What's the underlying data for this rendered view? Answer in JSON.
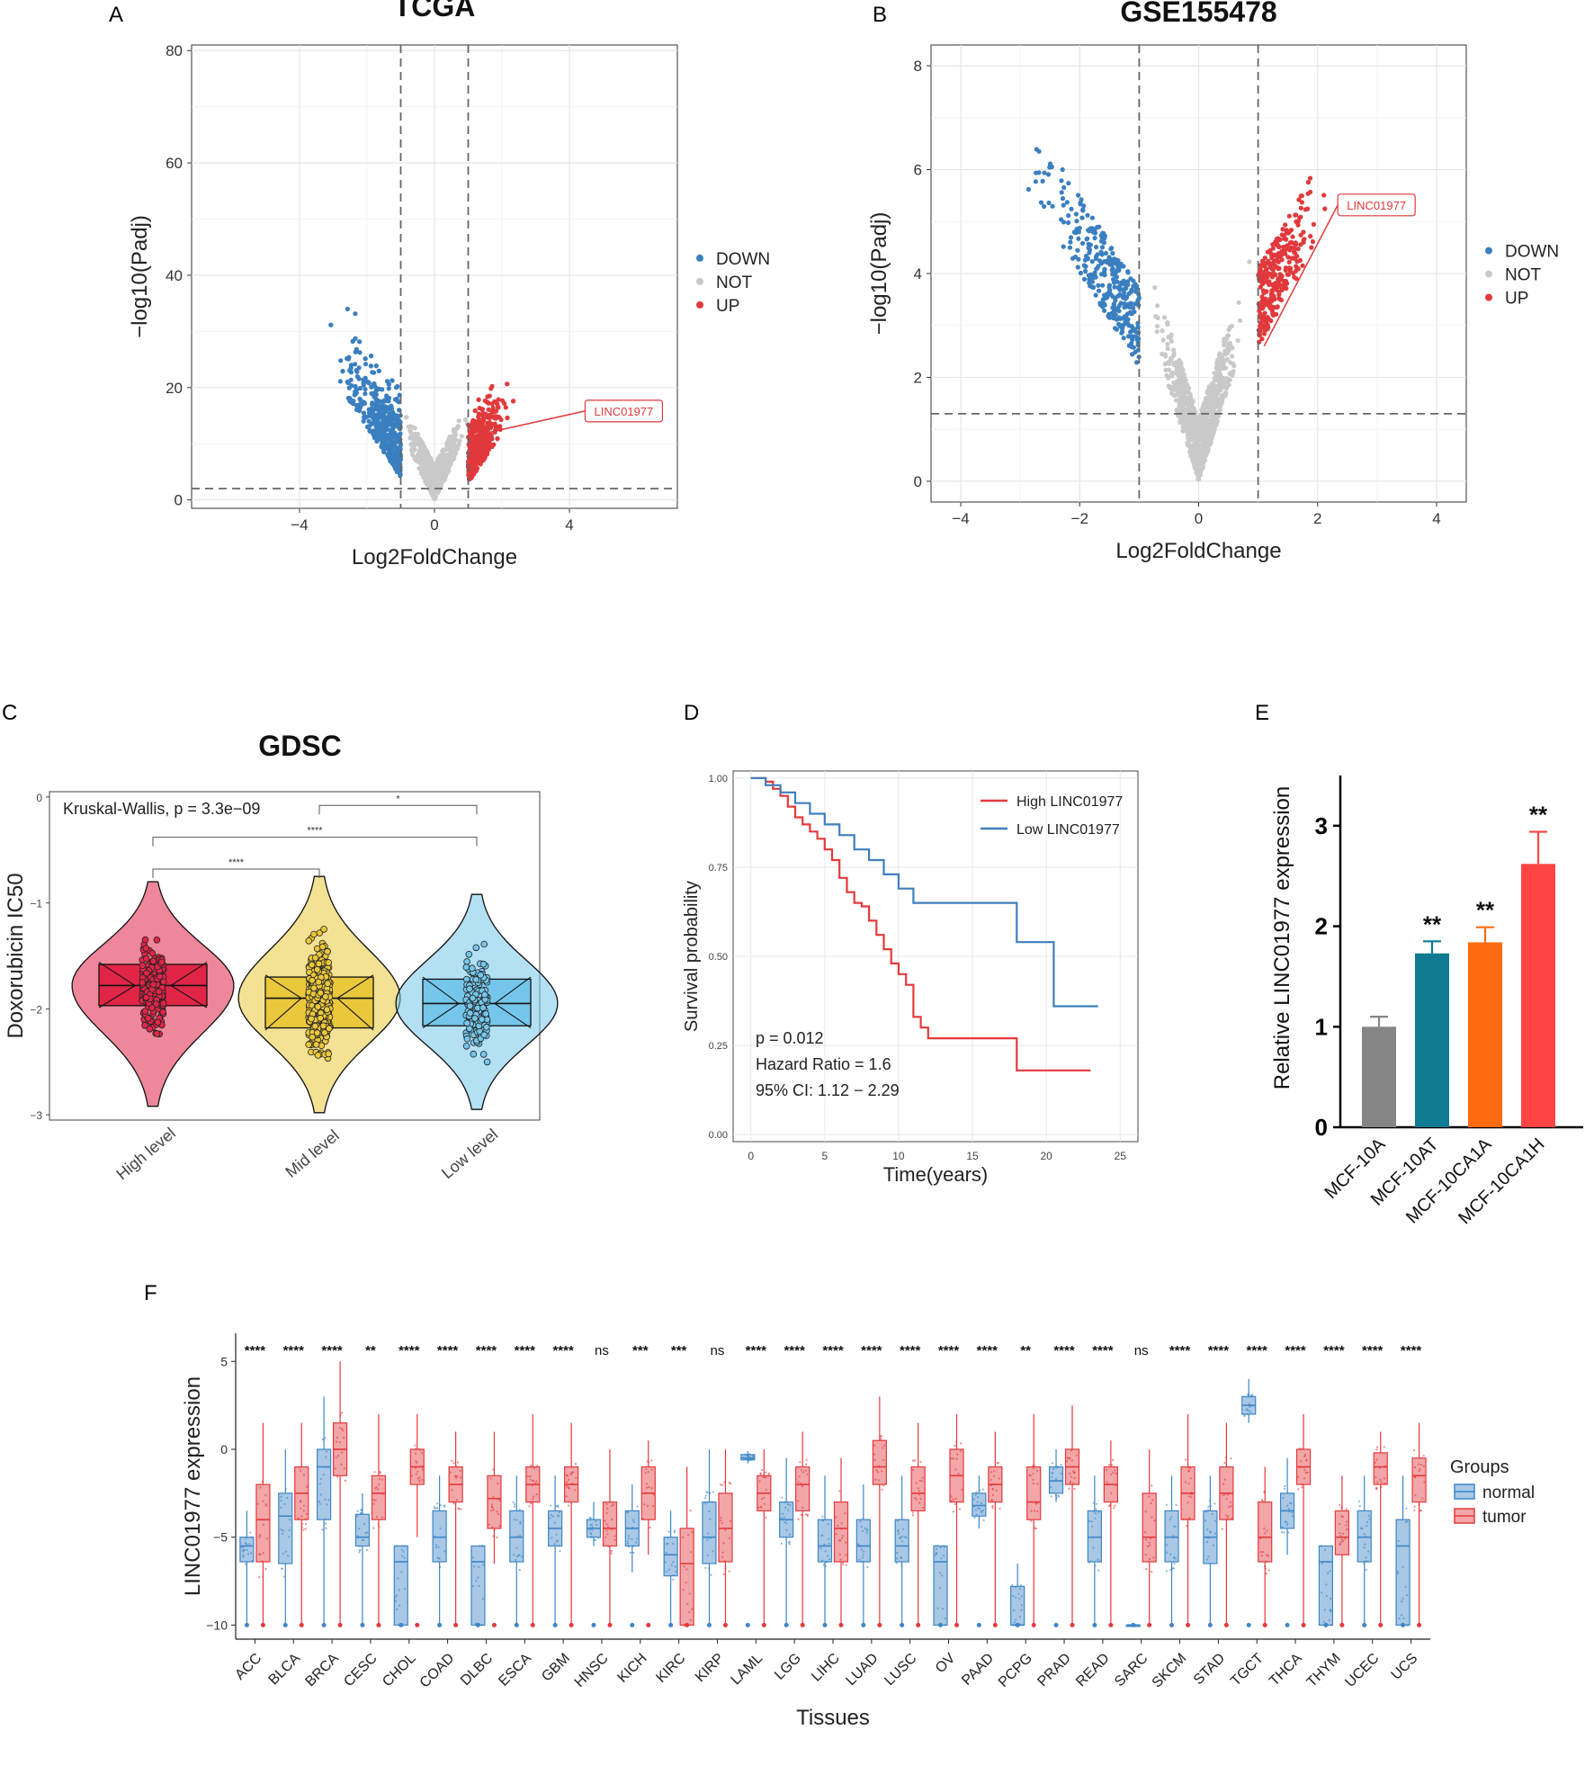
{
  "figure": {
    "panel_letters": [
      "A",
      "B",
      "C",
      "D",
      "E",
      "F"
    ]
  },
  "colors": {
    "down": "#3a7fc0",
    "not": "#c9c9c9",
    "up": "#e1393c",
    "high": "#e02547",
    "mid": "#eac83c",
    "low": "#74c6ea",
    "km_high": "#e5393c",
    "km_low": "#3e7fbd",
    "bar_10a": "#858585",
    "bar_10at": "#0f7b92",
    "bar_ca1a": "#ff6b0f",
    "bar_ca1h": "#ff4444",
    "normal": "#3e86c6",
    "tumor": "#e5393c"
  },
  "chart_data": [
    {
      "panel": "A",
      "type": "scatter",
      "title": "TCGA",
      "xlabel": "Log2FoldChange",
      "ylabel": "−log10(Padj)",
      "xlim": [
        -7.2,
        7.2
      ],
      "ylim": [
        -1.5,
        81
      ],
      "x_ticks": [
        -4,
        0,
        4
      ],
      "y_ticks": [
        0,
        20,
        40,
        60,
        80
      ],
      "fc_threshold": 1,
      "padj_threshold_line": 2,
      "legend": [
        "DOWN",
        "NOT",
        "UP"
      ],
      "annotation": {
        "label": "LINC01977",
        "x": 1.6,
        "y": 12
      }
    },
    {
      "panel": "B",
      "type": "scatter",
      "title": "GSE155478",
      "xlabel": "Log2FoldChange",
      "ylabel": "−log10(Padj)",
      "xlim": [
        -4.5,
        4.5
      ],
      "ylim": [
        -0.4,
        8.4
      ],
      "x_ticks": [
        -4,
        -2,
        0,
        2,
        4
      ],
      "y_ticks": [
        0,
        2,
        4,
        6,
        8
      ],
      "fc_threshold": 1,
      "padj_threshold_line": 1.3,
      "legend": [
        "DOWN",
        "NOT",
        "UP"
      ],
      "annotation": {
        "label": "LINC01977",
        "x": 1.1,
        "y": 2.6
      }
    },
    {
      "panel": "C",
      "type": "box",
      "title": "GDSC",
      "ylabel": "Doxorubicin IC50",
      "ylim": [
        -3.05,
        0.05
      ],
      "y_ticks": [
        0,
        -1,
        -2,
        -3
      ],
      "test_label": "Kruskal-Wallis, p = 3.3e−09",
      "groups": [
        {
          "name": "High level",
          "q1": -1.97,
          "median": -1.78,
          "q3": -1.58,
          "min": -2.45,
          "max": -1.1,
          "violin_min": -2.92,
          "violin_max": -0.8,
          "n": 220
        },
        {
          "name": "Mid level",
          "q1": -2.18,
          "median": -1.9,
          "q3": -1.7,
          "min": -2.85,
          "max": -1.05,
          "violin_min": -2.98,
          "violin_max": -0.75,
          "n": 360
        },
        {
          "name": "Low level",
          "q1": -2.16,
          "median": -1.95,
          "q3": -1.72,
          "min": -2.7,
          "max": -1.15,
          "violin_min": -2.95,
          "violin_max": -0.92,
          "n": 160
        }
      ],
      "comparisons": [
        {
          "from": 1,
          "to": 2,
          "label": "*",
          "y": -0.08
        },
        {
          "from": 0,
          "to": 2,
          "label": "****",
          "y": -0.38
        },
        {
          "from": 0,
          "to": 1,
          "label": "****",
          "y": -0.68
        }
      ]
    },
    {
      "panel": "D",
      "type": "line",
      "xlabel": "Time(years)",
      "ylabel": "Survival probability",
      "xlim": [
        -1.2,
        26.2
      ],
      "ylim": [
        -0.02,
        1.02
      ],
      "x_ticks": [
        0,
        5,
        10,
        15,
        20,
        25
      ],
      "y_ticks": [
        "0.00",
        "0.25",
        "0.50",
        "0.75",
        "1.00"
      ],
      "series": [
        {
          "name": "High LINC01977",
          "x": [
            0,
            1,
            1.5,
            2,
            2.5,
            3,
            3.5,
            4,
            4.5,
            5,
            5.5,
            6,
            6.5,
            7,
            7.5,
            8,
            8.5,
            9,
            9.5,
            10,
            10.5,
            11,
            11.5,
            12,
            18,
            23
          ],
          "y": [
            1,
            0.99,
            0.97,
            0.95,
            0.92,
            0.89,
            0.87,
            0.85,
            0.83,
            0.8,
            0.77,
            0.72,
            0.68,
            0.65,
            0.64,
            0.6,
            0.56,
            0.52,
            0.48,
            0.45,
            0.42,
            0.33,
            0.3,
            0.27,
            0.18,
            0.18
          ]
        },
        {
          "name": "Low LINC01977",
          "x": [
            0,
            1,
            2,
            3,
            4,
            5,
            6,
            7,
            8,
            9,
            10,
            11,
            18,
            20.5,
            23.5
          ],
          "y": [
            1,
            0.98,
            0.96,
            0.93,
            0.9,
            0.87,
            0.84,
            0.8,
            0.77,
            0.73,
            0.69,
            0.65,
            0.54,
            0.36,
            0.36
          ]
        }
      ],
      "annotations": [
        "p = 0.012",
        "Hazard Ratio = 1.6",
        "95% CI: 1.12 − 2.29"
      ]
    },
    {
      "panel": "E",
      "type": "bar",
      "ylabel": "Relative LINC01977 expression",
      "ylim": [
        0,
        3.5
      ],
      "y_ticks": [
        0,
        1,
        2,
        3
      ],
      "categories": [
        "MCF-10A",
        "MCF-10AT",
        "MCF-10CA1A",
        "MCF-10CA1H"
      ],
      "values": [
        1.0,
        1.73,
        1.84,
        2.62
      ],
      "errors": [
        0.1,
        0.12,
        0.15,
        0.32
      ],
      "significance": [
        "",
        "**",
        "**",
        "**"
      ]
    },
    {
      "panel": "F",
      "type": "box",
      "xlabel": "Tissues",
      "ylabel": "LINC01977 expression",
      "ylim": [
        -10.8,
        6.6
      ],
      "y_ticks": [
        5,
        0,
        -5,
        -10
      ],
      "legend_title": "Groups",
      "legend": [
        "normal",
        "tumor"
      ],
      "categories": [
        "ACC",
        "BLCA",
        "BRCA",
        "CESC",
        "CHOL",
        "COAD",
        "DLBC",
        "ESCA",
        "GBM",
        "HNSC",
        "KICH",
        "KIRC",
        "KIRP",
        "LAML",
        "LGG",
        "LIHC",
        "LUAD",
        "LUSC",
        "OV",
        "PAAD",
        "PCPG",
        "PRAD",
        "READ",
        "SARC",
        "SKCM",
        "STAD",
        "TGCT",
        "THCA",
        "THYM",
        "UCEC",
        "UCS"
      ],
      "significance": [
        "****",
        "****",
        "****",
        "**",
        "****",
        "****",
        "****",
        "****",
        "****",
        "ns",
        "***",
        "***",
        "ns",
        "****",
        "****",
        "****",
        "****",
        "****",
        "****",
        "****",
        "**",
        "****",
        "****",
        "ns",
        "****",
        "****",
        "****",
        "****",
        "****",
        "****",
        "****"
      ],
      "normal": [
        [
          -10,
          -6.4,
          -5.5,
          -5,
          -3.5
        ],
        [
          -10,
          -6.5,
          -3.8,
          -2.5,
          0
        ],
        [
          -10,
          -4,
          -1,
          0,
          3
        ],
        [
          -10,
          -5.5,
          -5,
          -3.7,
          -2.5
        ],
        [
          -10,
          -10,
          -6.4,
          -5.5,
          -5.5
        ],
        [
          -10,
          -6.4,
          -5,
          -3.5,
          -1.5
        ],
        [
          -10,
          -10,
          -6.4,
          -5.5,
          -5.5
        ],
        [
          -10,
          -6.4,
          -5,
          -3.5,
          -1.5
        ],
        [
          -10,
          -5.5,
          -4.5,
          -3.5,
          -1.5
        ],
        [
          -5.5,
          -5,
          -4.5,
          -4,
          -3
        ],
        [
          -7,
          -5.5,
          -4.5,
          -3.5,
          -2
        ],
        [
          -10,
          -7.2,
          -6,
          -5,
          -3.5
        ],
        [
          -10,
          -6.5,
          -5,
          -3,
          0
        ],
        [
          -0.8,
          -0.6,
          -0.5,
          -0.3,
          -0.1
        ],
        [
          -10,
          -5,
          -4,
          -3,
          -0.5
        ],
        [
          -10,
          -6.4,
          -5.5,
          -4,
          -1.5
        ],
        [
          -10,
          -6.4,
          -5.5,
          -4,
          -2
        ],
        [
          -10,
          -6.4,
          -5.5,
          -4,
          -1.5
        ],
        [
          -10,
          -10,
          -6.4,
          -5.5,
          -5.5
        ],
        [
          -4.5,
          -3.8,
          -3.2,
          -2.5,
          -1.5
        ],
        [
          -10,
          -10,
          -10,
          -7.8,
          -6.5
        ],
        [
          -3,
          -2.5,
          -1.8,
          -1,
          0
        ],
        [
          -10,
          -6.4,
          -5,
          -3.5,
          -1.5
        ],
        [
          -10,
          -10,
          -10,
          -10,
          -10
        ],
        [
          -10,
          -6.4,
          -5,
          -3.5,
          -1.5
        ],
        [
          -10,
          -6.5,
          -5,
          -3.5,
          -1.5
        ],
        [
          1.5,
          2,
          2.5,
          3,
          4
        ],
        [
          -6,
          -4.5,
          -3.5,
          -2.5,
          -0.5
        ],
        [
          -10,
          -10,
          -6.4,
          -5.5,
          -5.5
        ],
        [
          -10,
          -6.4,
          -5,
          -3.5,
          -1.5
        ],
        [
          -10,
          -10,
          -5.5,
          -4,
          -1.5
        ]
      ],
      "tumor": [
        [
          -10,
          -6.4,
          -4,
          -2,
          1.5
        ],
        [
          -10,
          -4,
          -2.5,
          -1,
          1.5
        ],
        [
          -10,
          -1.5,
          0,
          1.5,
          5
        ],
        [
          -10,
          -4,
          -2.5,
          -1.5,
          2
        ],
        [
          -5,
          -2,
          -1,
          0,
          2
        ],
        [
          -10,
          -3,
          -2,
          -1,
          1
        ],
        [
          -6.5,
          -4.5,
          -2.8,
          -1.5,
          1
        ],
        [
          -10,
          -3,
          -2,
          -1,
          2
        ],
        [
          -10,
          -3,
          -2,
          -1,
          1.5
        ],
        [
          -10,
          -5.5,
          -4.5,
          -3,
          0
        ],
        [
          -6,
          -4,
          -2.5,
          -1,
          0.5
        ],
        [
          -10,
          -10,
          -6.5,
          -4.5,
          -1
        ],
        [
          -10,
          -6.4,
          -4.5,
          -2.5,
          0
        ],
        [
          -10,
          -3.5,
          -2.5,
          -1.5,
          0
        ],
        [
          -10,
          -3.5,
          -2,
          -1,
          1
        ],
        [
          -10,
          -6.4,
          -4.5,
          -3,
          -0.5
        ],
        [
          -10,
          -2,
          -1,
          0.5,
          3
        ],
        [
          -10,
          -3.5,
          -2.5,
          -1,
          1.5
        ],
        [
          -10,
          -3,
          -1.5,
          0,
          2
        ],
        [
          -10,
          -3,
          -2,
          -1,
          1
        ],
        [
          -10,
          -4,
          -3,
          -1,
          2
        ],
        [
          -10,
          -2,
          -1,
          0,
          2.5
        ],
        [
          -10,
          -3,
          -2,
          -1,
          0.5
        ],
        [
          -10,
          -6.4,
          -5,
          -2.5,
          0
        ],
        [
          -10,
          -4,
          -2.5,
          -1,
          2
        ],
        [
          -10,
          -4,
          -2.5,
          -1,
          1.5
        ],
        [
          -10,
          -6.4,
          -5,
          -3,
          -1
        ],
        [
          -10,
          -2,
          -1,
          0,
          2
        ],
        [
          -10,
          -6,
          -5,
          -3.5,
          -1.5
        ],
        [
          -10,
          -2,
          -1,
          -0.2,
          1
        ],
        [
          -10,
          -3,
          -1.5,
          -0.5,
          1.5
        ]
      ]
    }
  ]
}
